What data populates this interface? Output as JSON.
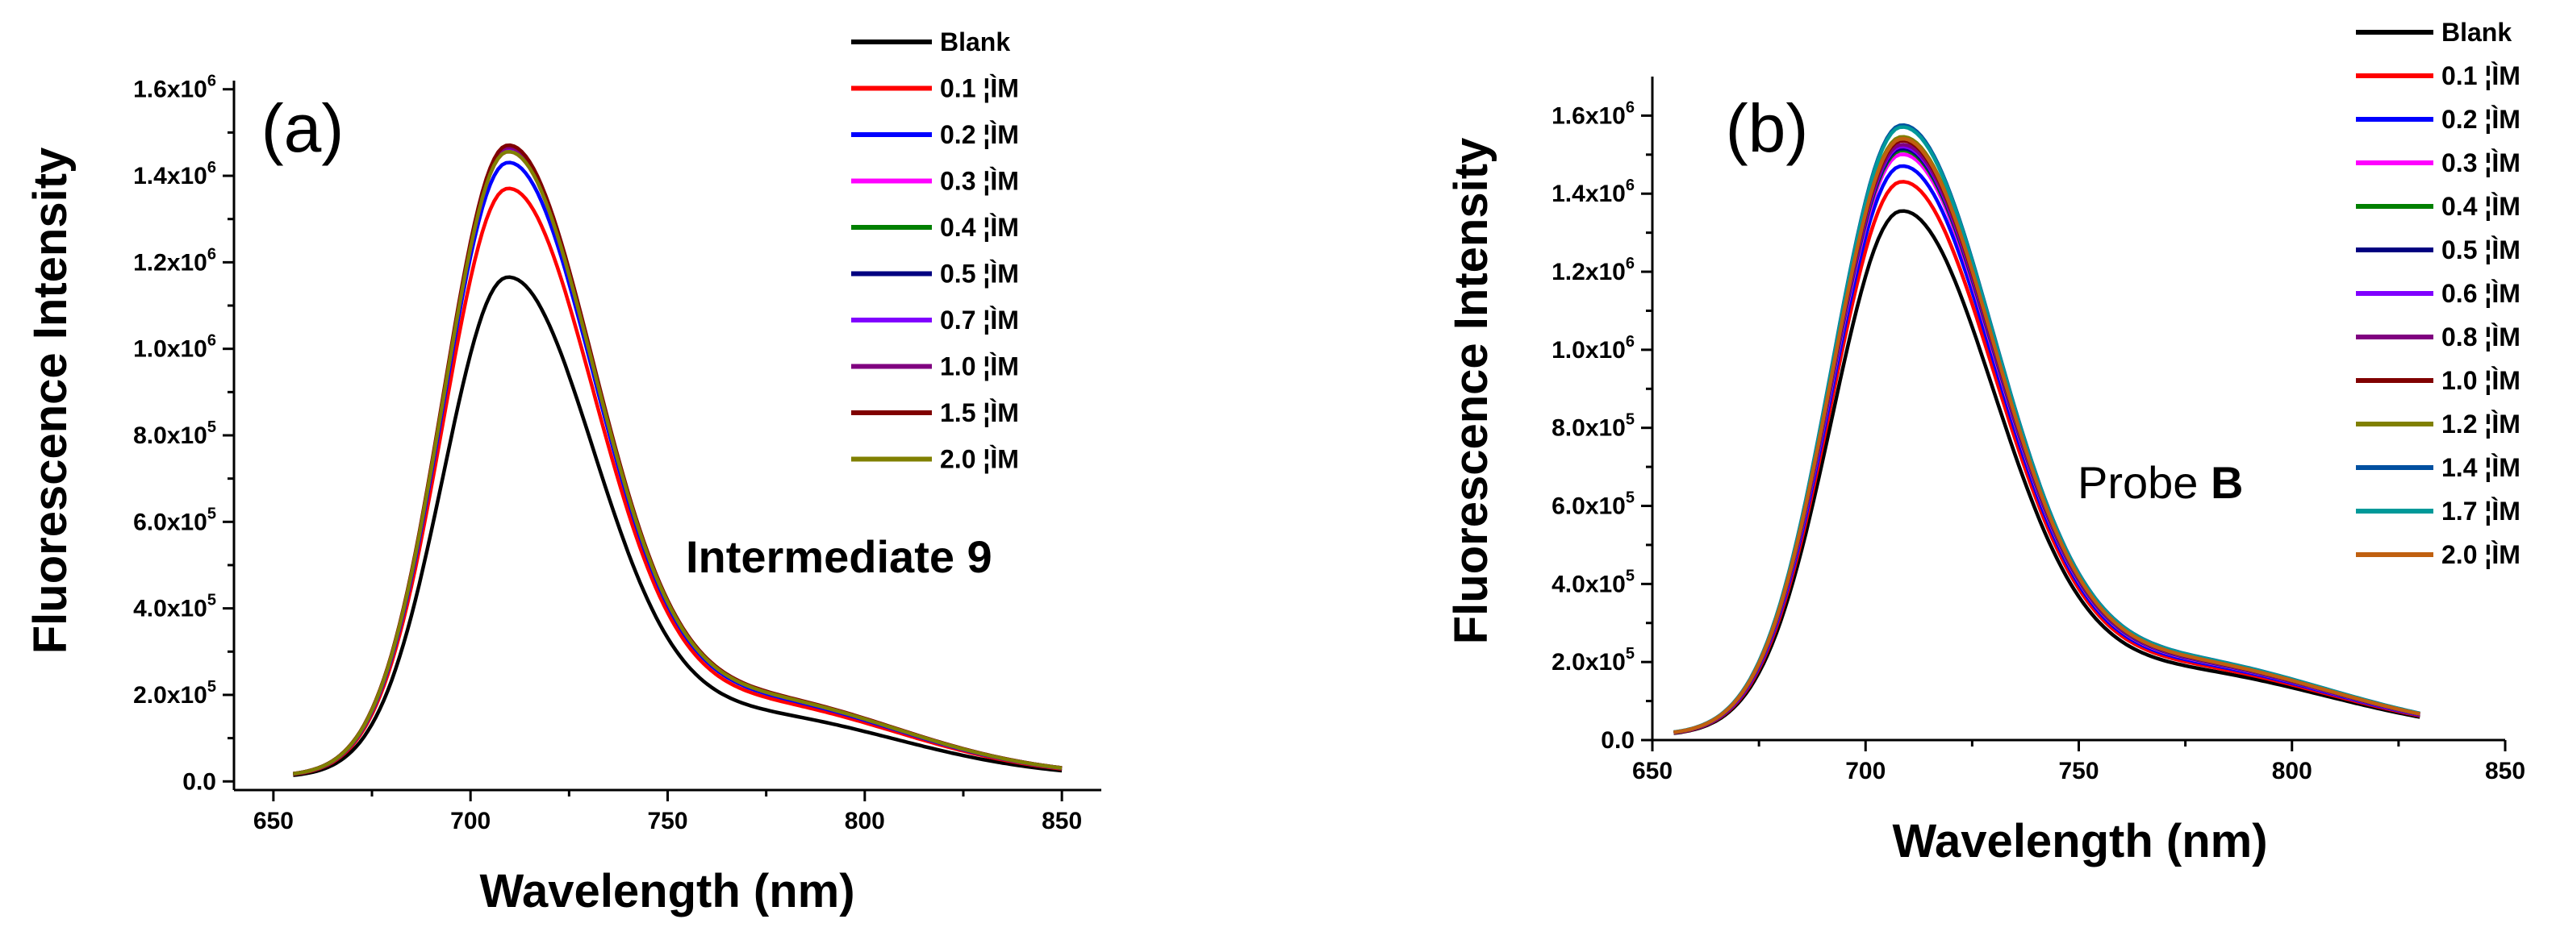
{
  "chart_data": [
    {
      "type": "line",
      "panel_label": "(a)",
      "annotation": {
        "text": "Intermediate 9",
        "bold": true
      },
      "xlabel": "Wavelength (nm)",
      "ylabel": "Fluorescence Intensity",
      "xlim": [
        640,
        860
      ],
      "ylim": [
        -20000,
        1620000
      ],
      "xticks": [
        650,
        700,
        750,
        800,
        850
      ],
      "xtick_labels": [
        "650",
        "700",
        "750",
        "800",
        "850"
      ],
      "yticks": [
        0,
        200000,
        400000,
        600000,
        800000,
        1000000,
        1200000,
        1400000,
        1600000
      ],
      "ytick_labels": [
        {
          "mantissa": "0.0",
          "exp": ""
        },
        {
          "mantissa": "2.0x10",
          "exp": "5"
        },
        {
          "mantissa": "4.0x10",
          "exp": "5"
        },
        {
          "mantissa": "6.0x10",
          "exp": "5"
        },
        {
          "mantissa": "8.0x10",
          "exp": "5"
        },
        {
          "mantissa": "1.0x10",
          "exp": "6"
        },
        {
          "mantissa": "1.2x10",
          "exp": "6"
        },
        {
          "mantissa": "1.4x10",
          "exp": "6"
        },
        {
          "mantissa": "1.6x10",
          "exp": "6"
        }
      ],
      "legend_position": "top-right",
      "x_range": [
        655,
        850
      ],
      "peak_x": 709,
      "series": [
        {
          "name": "Blank",
          "color": "#000000",
          "peak": 1165000
        },
        {
          "name": "0.1 ¦ÌM",
          "color": "#ff0000",
          "peak": 1370000
        },
        {
          "name": "0.2 ¦ÌM",
          "color": "#0000ff",
          "peak": 1430000
        },
        {
          "name": "0.3 ¦ÌM",
          "color": "#ff00ff",
          "peak": 1455000
        },
        {
          "name": "0.4 ¦ÌM",
          "color": "#008000",
          "peak": 1460000
        },
        {
          "name": "0.5 ¦ÌM",
          "color": "#000080",
          "peak": 1460000
        },
        {
          "name": "0.7 ¦ÌM",
          "color": "#8000ff",
          "peak": 1462000
        },
        {
          "name": "1.0 ¦ÌM",
          "color": "#800080",
          "peak": 1465000
        },
        {
          "name": "1.5 ¦ÌM",
          "color": "#800000",
          "peak": 1470000
        },
        {
          "name": "2.0 ¦ÌM",
          "color": "#808000",
          "peak": 1455000
        }
      ]
    },
    {
      "type": "line",
      "panel_label": "(b)",
      "annotation": {
        "text": "Probe ",
        "bold_part": "B"
      },
      "xlabel": "Wavelength (nm)",
      "ylabel": "Fluorescence Intensity",
      "xlim": [
        650,
        850
      ],
      "ylim": [
        0,
        1700000
      ],
      "xticks": [
        650,
        700,
        750,
        800,
        850
      ],
      "xtick_labels": [
        "650",
        "700",
        "750",
        "800",
        "850"
      ],
      "yticks": [
        0,
        200000,
        400000,
        600000,
        800000,
        1000000,
        1200000,
        1400000,
        1600000
      ],
      "ytick_labels": [
        {
          "mantissa": "0.0",
          "exp": ""
        },
        {
          "mantissa": "2.0x10",
          "exp": "5"
        },
        {
          "mantissa": "4.0x10",
          "exp": "5"
        },
        {
          "mantissa": "6.0x10",
          "exp": "5"
        },
        {
          "mantissa": "8.0x10",
          "exp": "5"
        },
        {
          "mantissa": "1.0x10",
          "exp": "6"
        },
        {
          "mantissa": "1.2x10",
          "exp": "6"
        },
        {
          "mantissa": "1.4x10",
          "exp": "6"
        },
        {
          "mantissa": "1.6x10",
          "exp": "6"
        }
      ],
      "legend_position": "top-right",
      "x_range": [
        655,
        830
      ],
      "peak_x": 708,
      "series": [
        {
          "name": "Blank",
          "color": "#000000",
          "peak": 1355000
        },
        {
          "name": "0.1 ¦ÌM",
          "color": "#ff0000",
          "peak": 1430000
        },
        {
          "name": "0.2 ¦ÌM",
          "color": "#0000ff",
          "peak": 1470000
        },
        {
          "name": "0.3 ¦ÌM",
          "color": "#ff00ff",
          "peak": 1500000
        },
        {
          "name": "0.4 ¦ÌM",
          "color": "#008000",
          "peak": 1510000
        },
        {
          "name": "0.5 ¦ÌM",
          "color": "#000080",
          "peak": 1515000
        },
        {
          "name": "0.6 ¦ÌM",
          "color": "#8000ff",
          "peak": 1520000
        },
        {
          "name": "0.8 ¦ÌM",
          "color": "#800080",
          "peak": 1525000
        },
        {
          "name": "1.0 ¦ÌM",
          "color": "#800000",
          "peak": 1535000
        },
        {
          "name": "1.2 ¦ÌM",
          "color": "#808000",
          "peak": 1545000
        },
        {
          "name": "1.4 ¦ÌM",
          "color": "#0050a0",
          "peak": 1575000
        },
        {
          "name": "1.7 ¦ÌM",
          "color": "#009999",
          "peak": 1570000
        },
        {
          "name": "2.0 ¦ÌM",
          "color": "#c06010",
          "peak": 1540000
        }
      ]
    }
  ]
}
